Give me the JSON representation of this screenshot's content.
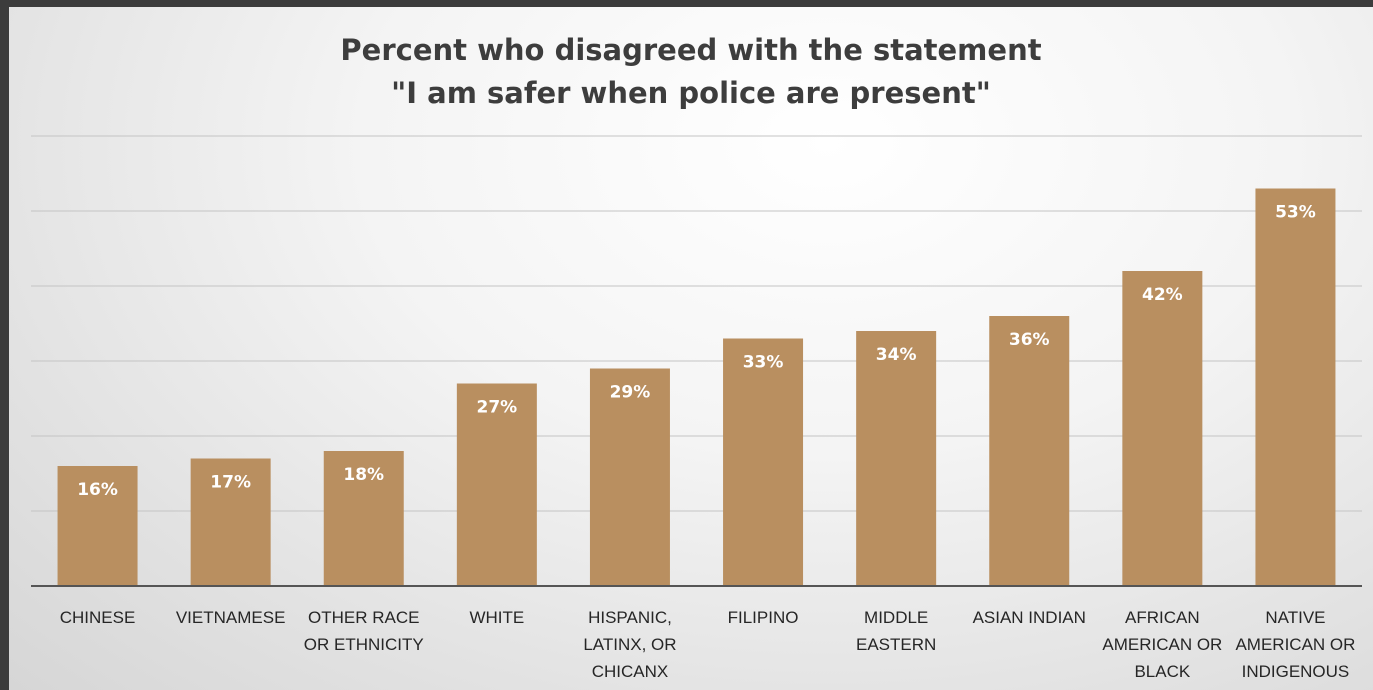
{
  "chart_data": {
    "type": "bar",
    "title_lines": [
      "Percent who disagreed with the statement",
      "\"I am safer when police are present\""
    ],
    "categories": [
      [
        "CHINESE"
      ],
      [
        "VIETNAMESE"
      ],
      [
        "OTHER RACE",
        "OR ETHNICITY"
      ],
      [
        "WHITE"
      ],
      [
        "HISPANIC,",
        "LATINX, OR",
        "CHICANX"
      ],
      [
        "FILIPINO"
      ],
      [
        "MIDDLE",
        "EASTERN"
      ],
      [
        "ASIAN INDIAN"
      ],
      [
        "AFRICAN",
        "AMERICAN OR",
        "BLACK"
      ],
      [
        "NATIVE",
        "AMERICAN OR",
        "INDIGENOUS"
      ]
    ],
    "values": [
      16,
      17,
      18,
      27,
      29,
      33,
      34,
      36,
      42,
      53
    ],
    "value_labels": [
      "16%",
      "17%",
      "18%",
      "27%",
      "29%",
      "33%",
      "34%",
      "36%",
      "42%",
      "53%"
    ],
    "ylim": [
      0,
      60
    ],
    "y_gridline_step": 10,
    "grid": true,
    "legend": "none",
    "bar_color": "#b98f60",
    "label_color": "#ffffff"
  }
}
